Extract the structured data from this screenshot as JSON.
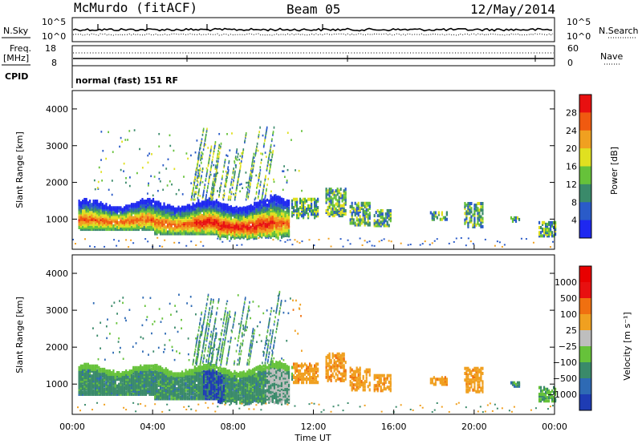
{
  "header": {
    "station": "McMurdo (fitACF)",
    "beam": "Beam 05",
    "date": "12/May/2014"
  },
  "strip_labels": {
    "nsky": "N.Sky",
    "nsearch": "N.Search",
    "freq_line1": "Freq.",
    "freq_line2": "[MHz]",
    "nave": "Nave",
    "cpid": "CPID",
    "cpid_value": "normal (fast) 151 RF",
    "noise_left_top": "10^5",
    "noise_left_bottom": "10^0",
    "noise_right_top": "10^5",
    "noise_right_bottom": "10^0",
    "freq_left_top": "18",
    "freq_left_bottom": "8",
    "nave_right_top": "60",
    "nave_right_bottom": "0"
  },
  "chart_data": [
    {
      "type": "heatmap",
      "title": "",
      "xlabel": "",
      "ylabel": "Slant Range [km]",
      "xlim": [
        0,
        24
      ],
      "ylim": [
        180,
        4500
      ],
      "yticks": [
        1000,
        2000,
        3000,
        4000
      ],
      "colorbar": {
        "label": "Power [dB]",
        "ticks": [
          "4",
          "8",
          "12",
          "16",
          "20",
          "24",
          "28"
        ],
        "colors": [
          "#1e28f0",
          "#2a5bc8",
          "#3a8a6a",
          "#66c23a",
          "#e0e020",
          "#f0a020",
          "#f05a10",
          "#e81010"
        ]
      },
      "description_points": {
        "main_band_hours": [
          0.3,
          10.8
        ],
        "main_band_range_km": [
          600,
          1500
        ],
        "secondary_patches_hours": [
          11,
          13.6,
          23.3
        ],
        "secondary_patches_range_km": [
          1000,
          1700,
          700
        ]
      }
    },
    {
      "type": "heatmap",
      "title": "",
      "xlabel": "Time UT",
      "ylabel": "Slant Range [km]",
      "xlim": [
        0,
        24
      ],
      "ylim": [
        180,
        4500
      ],
      "yticks": [
        1000,
        2000,
        3000,
        4000
      ],
      "xticks": [
        "00:00",
        "04:00",
        "08:00",
        "12:00",
        "16:00",
        "20:00",
        "00:00"
      ],
      "colorbar": {
        "label": "Velocity [m s⁻¹]",
        "ticks": [
          "1000",
          "500",
          "100",
          "25",
          "−25",
          "−100",
          "−500",
          "−1000"
        ],
        "colors": [
          "#1e3cb4",
          "#2e6ab4",
          "#3a8a6a",
          "#66c23a",
          "#bebebe",
          "#f0a020",
          "#f07010",
          "#e81010",
          "#e80000"
        ]
      }
    }
  ]
}
